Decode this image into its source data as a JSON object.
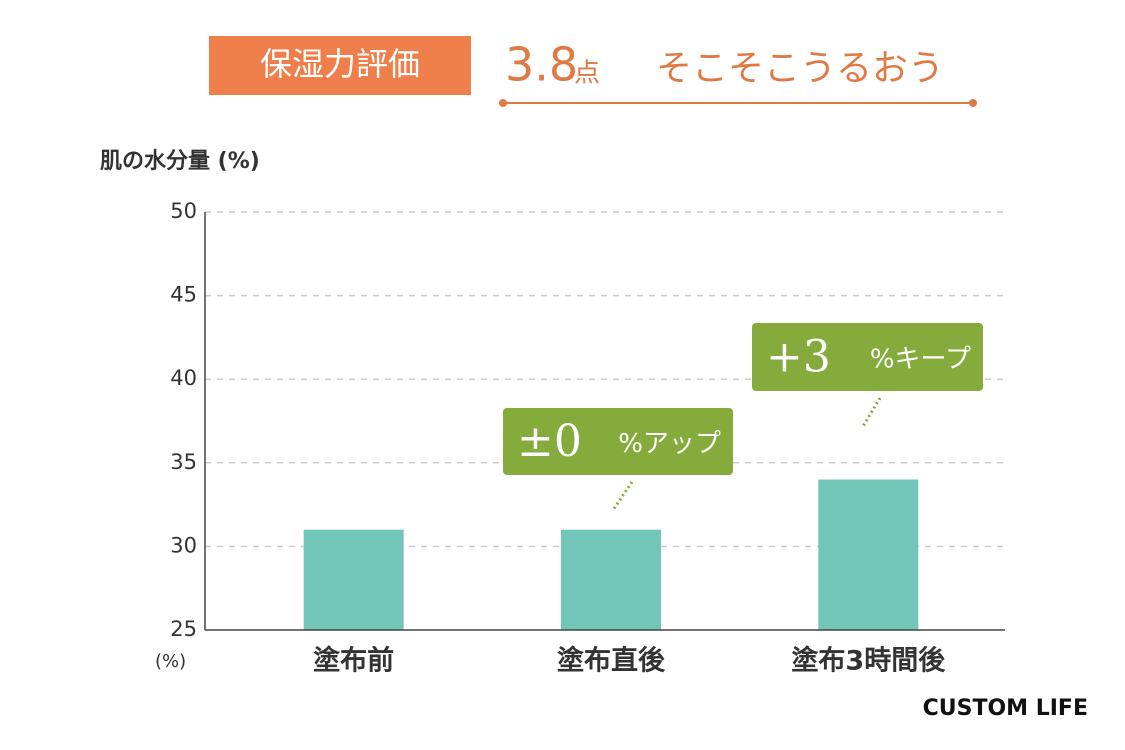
{
  "header": {
    "label": "保湿力評価",
    "score": "3.8",
    "score_unit": "点",
    "verdict": "そこそこうるおう"
  },
  "chart_data": {
    "type": "bar",
    "y_label": "肌の水分量 (%)",
    "y_unit_note": "(%)",
    "categories": [
      "塗布前",
      "塗布直後",
      "塗布3時間後"
    ],
    "values": [
      31,
      31,
      34
    ],
    "color": "#72c6b8",
    "ylim": [
      25,
      50
    ],
    "yticks": [
      25,
      30,
      35,
      40,
      45,
      50
    ],
    "grid": true,
    "annotations": [
      {
        "main": "±0",
        "sub": "%アップ"
      },
      {
        "main": "+3",
        "sub": "%キープ"
      }
    ],
    "annotation_color": "#84ab3c"
  },
  "footer": {
    "brand": "CUSTOM LIFE"
  }
}
